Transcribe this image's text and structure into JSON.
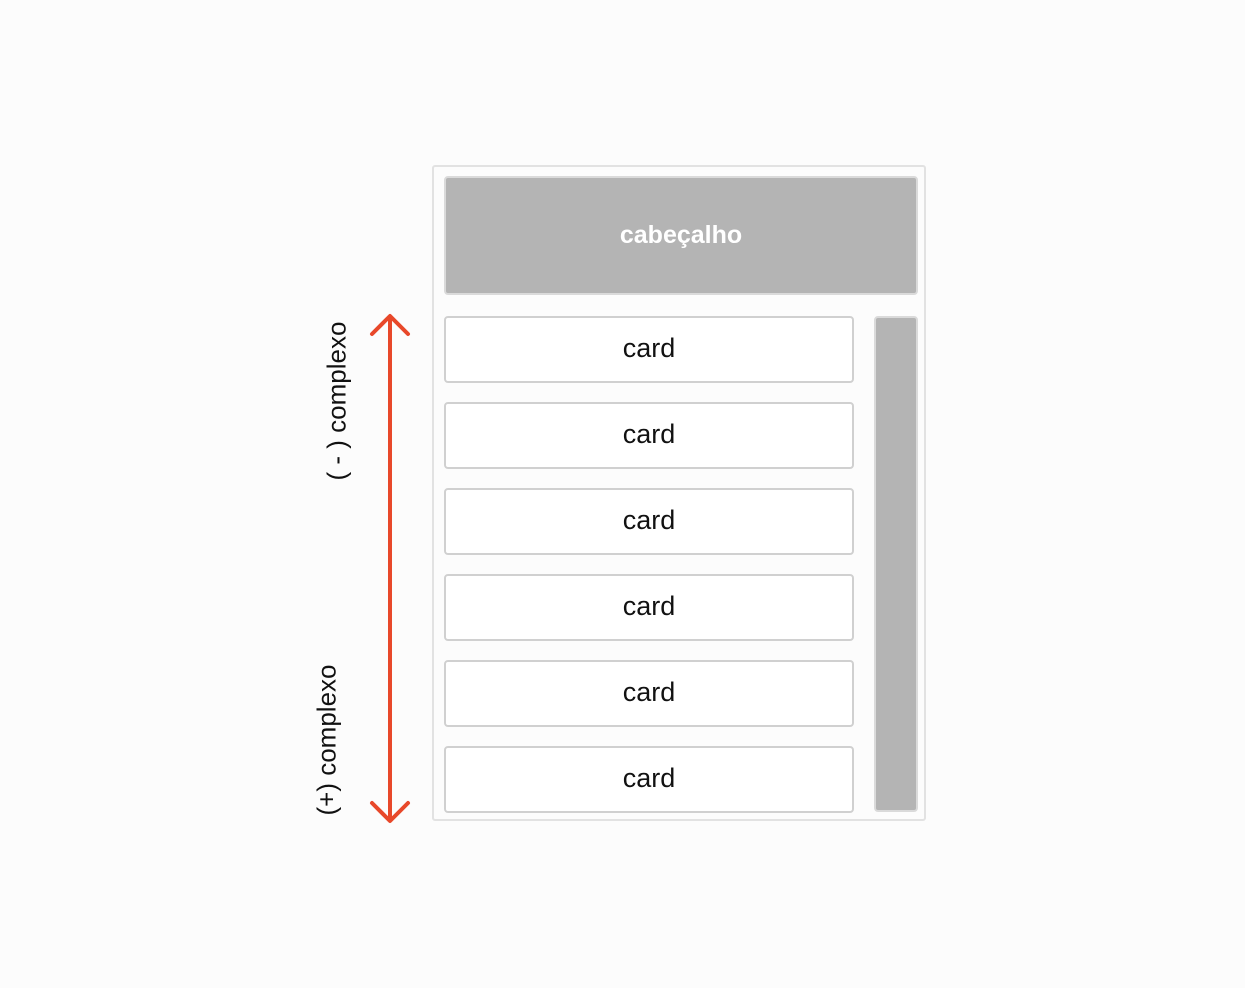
{
  "diagram": {
    "header_label": "cabeçalho",
    "cards": [
      {
        "label": "card"
      },
      {
        "label": "card"
      },
      {
        "label": "card"
      },
      {
        "label": "card"
      },
      {
        "label": "card"
      },
      {
        "label": "card"
      }
    ],
    "axis": {
      "top_label": "( - ) complexo",
      "bottom_label": "(+) complexo"
    }
  },
  "colors": {
    "arrow": "#e8482a",
    "block_fill": "#b4b4b4",
    "background": "#fcfcfc"
  }
}
